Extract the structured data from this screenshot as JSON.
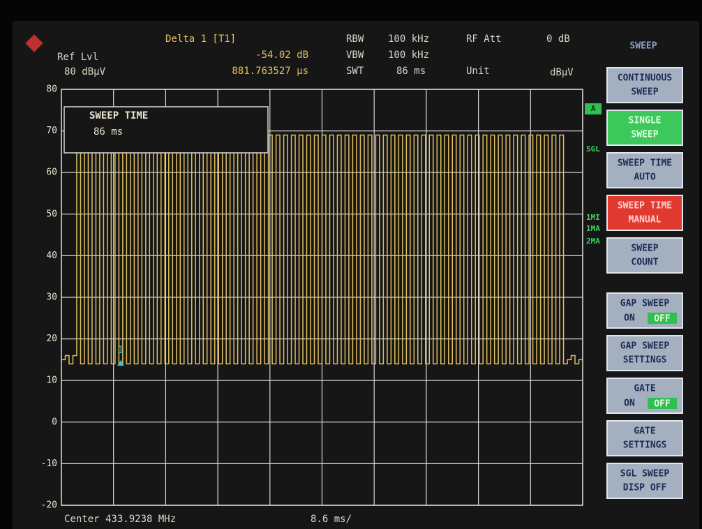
{
  "header": {
    "ref_lvl": "Ref Lvl",
    "ref_value": "80 dBµV",
    "marker_title": "Delta 1 [T1]",
    "marker_level": "-54.02 dB",
    "marker_time": "881.763527 µs",
    "rbw_label": "RBW",
    "rbw_value": "100 kHz",
    "vbw_label": "VBW",
    "vbw_value": "100 kHz",
    "swt_label": "SWT",
    "swt_value": "86 ms",
    "rf_att_label": "RF Att",
    "rf_att_value": "0 dB",
    "unit_label": "Unit",
    "unit_value": "dBµV"
  },
  "side": {
    "title": "SWEEP",
    "buttons": [
      {
        "lines": [
          "CONTINUOUS",
          "SWEEP"
        ]
      },
      {
        "lines": [
          "SINGLE",
          "SWEEP"
        ]
      },
      {
        "lines": [
          "SWEEP TIME",
          "AUTO"
        ]
      },
      {
        "lines": [
          "SWEEP TIME",
          "MANUAL"
        ]
      },
      {
        "lines": [
          "SWEEP",
          "COUNT"
        ]
      },
      {
        "lines": [
          "GAP SWEEP",
          "ON",
          "OFF"
        ]
      },
      {
        "lines": [
          "GAP SWEEP",
          "SETTINGS"
        ]
      },
      {
        "lines": [
          "GATE",
          "ON",
          "OFF"
        ]
      },
      {
        "lines": [
          "GATE",
          "SETTINGS"
        ]
      },
      {
        "lines": [
          "SGL SWEEP",
          "DISP OFF"
        ]
      }
    ]
  },
  "indicators": {
    "a": "A",
    "sgl": "SGL",
    "trace1": "1MI",
    "trace1b": "1MA",
    "trace2": "2MA"
  },
  "edit_box": {
    "title": "SWEEP TIME",
    "value": "86 ms"
  },
  "marker_label": "1",
  "footer": {
    "center": "Center 433.9238 MHz",
    "span": "8.6 ms/"
  },
  "chart_data": {
    "type": "line",
    "color": "#e0c060",
    "ylim": [
      -20,
      80
    ],
    "yticks": [
      -20,
      -10,
      0,
      10,
      20,
      30,
      40,
      50,
      60,
      70,
      80
    ],
    "grid": true,
    "values": [
      15,
      16,
      14,
      16,
      69,
      14,
      69,
      14,
      69,
      14,
      69,
      14,
      69,
      14,
      69,
      14,
      69,
      14,
      69,
      14,
      69,
      14,
      69,
      14,
      69,
      14,
      69,
      14,
      69,
      14,
      69,
      14,
      69,
      14,
      69,
      14,
      69,
      14,
      69,
      14,
      69,
      14,
      69,
      14,
      69,
      14,
      69,
      14,
      69,
      14,
      69,
      14,
      69,
      14,
      69,
      14,
      69,
      14,
      69,
      14,
      69,
      14,
      69,
      14,
      69,
      14,
      69,
      14,
      69,
      14,
      69,
      14,
      69,
      14,
      69,
      14,
      69,
      14,
      69,
      14,
      69,
      14,
      69,
      14,
      69,
      14,
      69,
      14,
      69,
      14,
      69,
      14,
      69,
      14,
      69,
      14,
      69,
      14,
      69,
      14,
      69,
      14,
      69,
      14,
      69,
      14,
      69,
      14,
      69,
      14,
      69,
      14,
      69,
      14,
      69,
      14,
      69,
      14,
      69,
      14,
      69,
      14,
      69,
      14,
      69,
      14,
      69,
      14,
      69,
      14,
      69,
      14,
      15,
      16,
      14,
      15
    ]
  }
}
